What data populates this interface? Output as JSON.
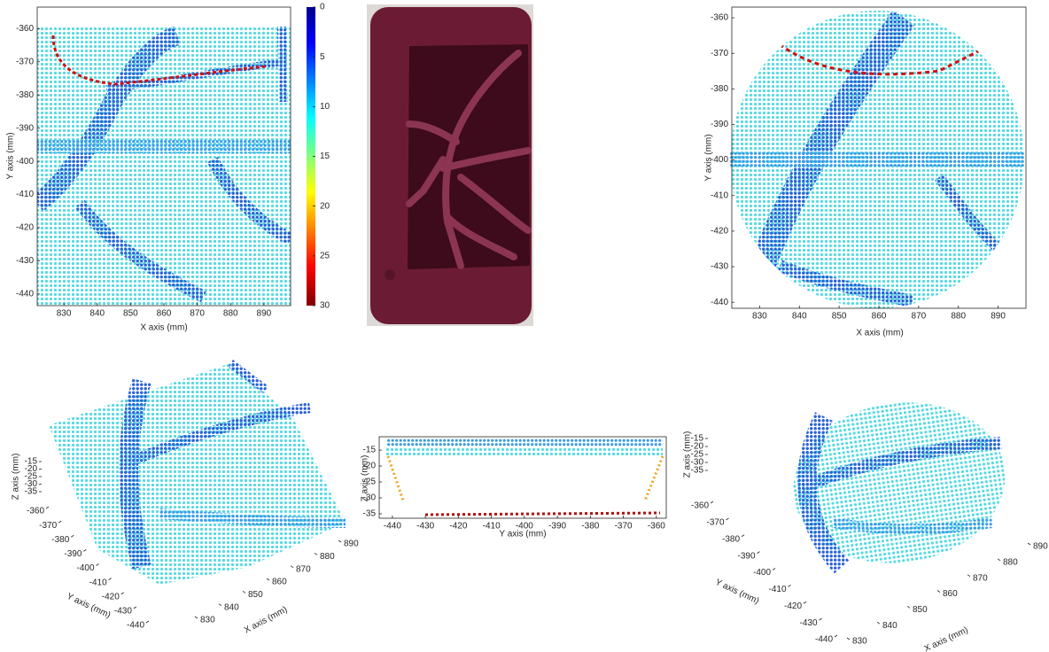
{
  "chart_data": [
    {
      "type": "scatter",
      "x_label": "X axis (mm)",
      "y_label": "Y axis (mm)",
      "xlim": [
        822,
        898
      ],
      "ylim": [
        -443.5,
        -353.5
      ],
      "xticks": [
        830,
        840,
        850,
        860,
        870,
        880,
        890
      ],
      "yticks": [
        -440,
        -430,
        -420,
        -410,
        -400,
        -390,
        -380,
        -370,
        -360
      ],
      "colorbar": {
        "lim": [
          0,
          30
        ],
        "ticks": [
          0,
          5,
          10,
          15,
          20,
          25,
          30
        ],
        "reversed": true
      }
    },
    {
      "type": "scatter",
      "x_label": "X axis (mm)",
      "y_label": "Y axis (mm)",
      "xlim": [
        823,
        897
      ],
      "ylim": [
        -441.7,
        -357
      ],
      "xticks": [
        830,
        840,
        850,
        860,
        870,
        880,
        890
      ],
      "yticks": [
        -440,
        -430,
        -420,
        -410,
        -400,
        -390,
        -380,
        -370,
        -360
      ]
    },
    {
      "type": "scatter3d",
      "x_label": "X axis (mm)",
      "y_label": "Y axis (mm)",
      "z_label": "Z axis (mm)",
      "xlim": [
        830,
        890
      ],
      "ylim": [
        -440,
        -360
      ],
      "zlim": [
        -35,
        -15
      ],
      "xticks": [
        830,
        840,
        850,
        860,
        870,
        880,
        890
      ],
      "yticks": [
        -440,
        -430,
        -420,
        -410,
        -400,
        -390,
        -380,
        -370,
        -360
      ],
      "zticks": [
        -35,
        -30,
        -25,
        -20,
        -15
      ]
    },
    {
      "type": "scatter",
      "x_label": "Y axis (mm)",
      "y_label": "Z axis (mm)",
      "xlim": [
        -444,
        -357
      ],
      "ylim": [
        -36.4,
        -10.8
      ],
      "xticks": [
        -440,
        -430,
        -420,
        -410,
        -400,
        -390,
        -380,
        -370,
        -360
      ],
      "yticks": [
        -35,
        -30,
        -25,
        -20,
        -15
      ]
    },
    {
      "type": "scatter3d",
      "x_label": "X axis (mm)",
      "y_label": "Y axis (mm)",
      "z_label": "Z axis (mm)",
      "xlim": [
        830,
        890
      ],
      "ylim": [
        -440,
        -360
      ],
      "zlim": [
        -35,
        -15
      ],
      "xticks": [
        830,
        840,
        850,
        860,
        870,
        880,
        890
      ],
      "yticks": [
        -440,
        -430,
        -420,
        -410,
        -400,
        -390,
        -380,
        -370,
        -360
      ],
      "zticks": [
        -35,
        -30,
        -25,
        -20,
        -15
      ]
    }
  ]
}
